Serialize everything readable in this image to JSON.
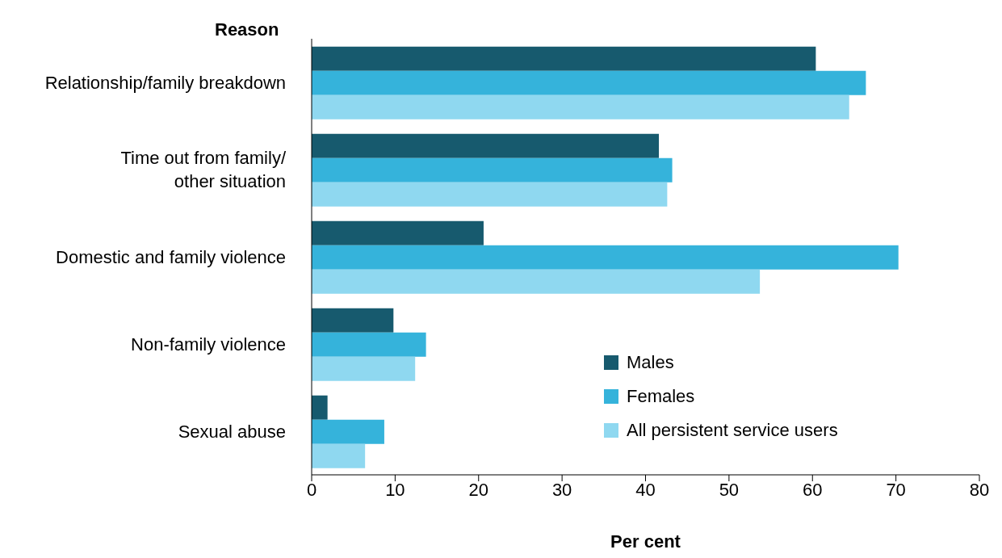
{
  "chart_data": {
    "type": "bar",
    "orientation": "horizontal",
    "ylabel": "Reason",
    "xlabel": "Per cent",
    "categories": [
      "Relationship/family breakdown",
      "Time out from family/ other situation",
      "Domestic and family violence",
      "Non-family violence",
      "Sexual abuse"
    ],
    "series": [
      {
        "name": "Males",
        "color": "#175a6e",
        "values": [
          60.4,
          41.6,
          20.6,
          9.8,
          1.9
        ]
      },
      {
        "name": "Females",
        "color": "#35b3db",
        "values": [
          66.4,
          43.2,
          70.3,
          13.7,
          8.7
        ]
      },
      {
        "name": "All persistent service users",
        "color": "#8fd8f0",
        "values": [
          64.4,
          42.6,
          53.7,
          12.4,
          6.4
        ]
      }
    ],
    "xlim": [
      0,
      80
    ],
    "xticks": [
      0,
      10,
      20,
      30,
      40,
      50,
      60,
      70,
      80
    ],
    "grid": false,
    "legend": "bottom right"
  }
}
